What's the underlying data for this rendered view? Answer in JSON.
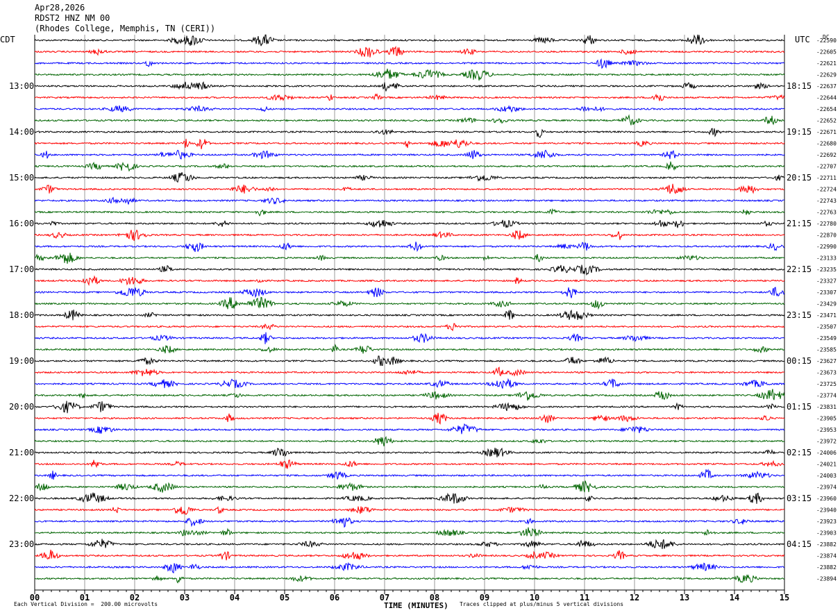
{
  "header": {
    "date": "Apr28,2026",
    "station": "RDST2 HNZ NM 00",
    "location": "(Rhodes College, Memphis, TN (CERI))"
  },
  "chart_data": {
    "type": "line",
    "title": "Apr28,2026 RDST2 HNZ NM 00 (Rhodes College, Memphis, TN (CERI))",
    "left_tz_label": "CDT",
    "right_tz_label": "UTC",
    "dc_label": "DC",
    "xlabel": "TIME (MINUTES)",
    "x_ticks": [
      "00",
      "01",
      "02",
      "03",
      "04",
      "05",
      "06",
      "07",
      "08",
      "09",
      "10",
      "11",
      "12",
      "13",
      "14",
      "15"
    ],
    "xlim": [
      0,
      15
    ],
    "grid": true,
    "trace_colors": [
      "#000000",
      "#ff0000",
      "#0000ff",
      "#006400"
    ],
    "left_hour_labels": [
      "13:00",
      "14:00",
      "15:00",
      "16:00",
      "17:00",
      "18:00",
      "19:00",
      "20:00",
      "21:00",
      "22:00",
      "23:00"
    ],
    "right_hour_labels": [
      "18:15",
      "19:15",
      "20:15",
      "21:15",
      "22:15",
      "23:15",
      "00:15",
      "01:15",
      "02:15",
      "03:15",
      "04:15"
    ],
    "dc_offsets": [
      "-22590",
      "-22605",
      "-22621",
      "-22629",
      "-22637",
      "-22644",
      "-22654",
      "-22652",
      "-22671",
      "-22680",
      "-22692",
      "-22707",
      "-22711",
      "-22724",
      "-22743",
      "-22763",
      "-22780",
      "-22870",
      "-22990",
      "-23133",
      "-23235",
      "-23327",
      "-23307",
      "-23429",
      "-23471",
      "-23507",
      "-23549",
      "-23585",
      "-23627",
      "-23673",
      "-23725",
      "-23774",
      "-23831",
      "-23905",
      "-23953",
      "-23972",
      "-24006",
      "-24021",
      "-24003",
      "-23974",
      "-23960",
      "-23940",
      "-23923",
      "-23903",
      "-23882",
      "-23874",
      "-23882",
      "-23894"
    ],
    "footer_left": "Each Vertical Division =  200.00 microvolts",
    "footer_right": "Traces clipped at plus/minus 5 vertical divisions"
  }
}
